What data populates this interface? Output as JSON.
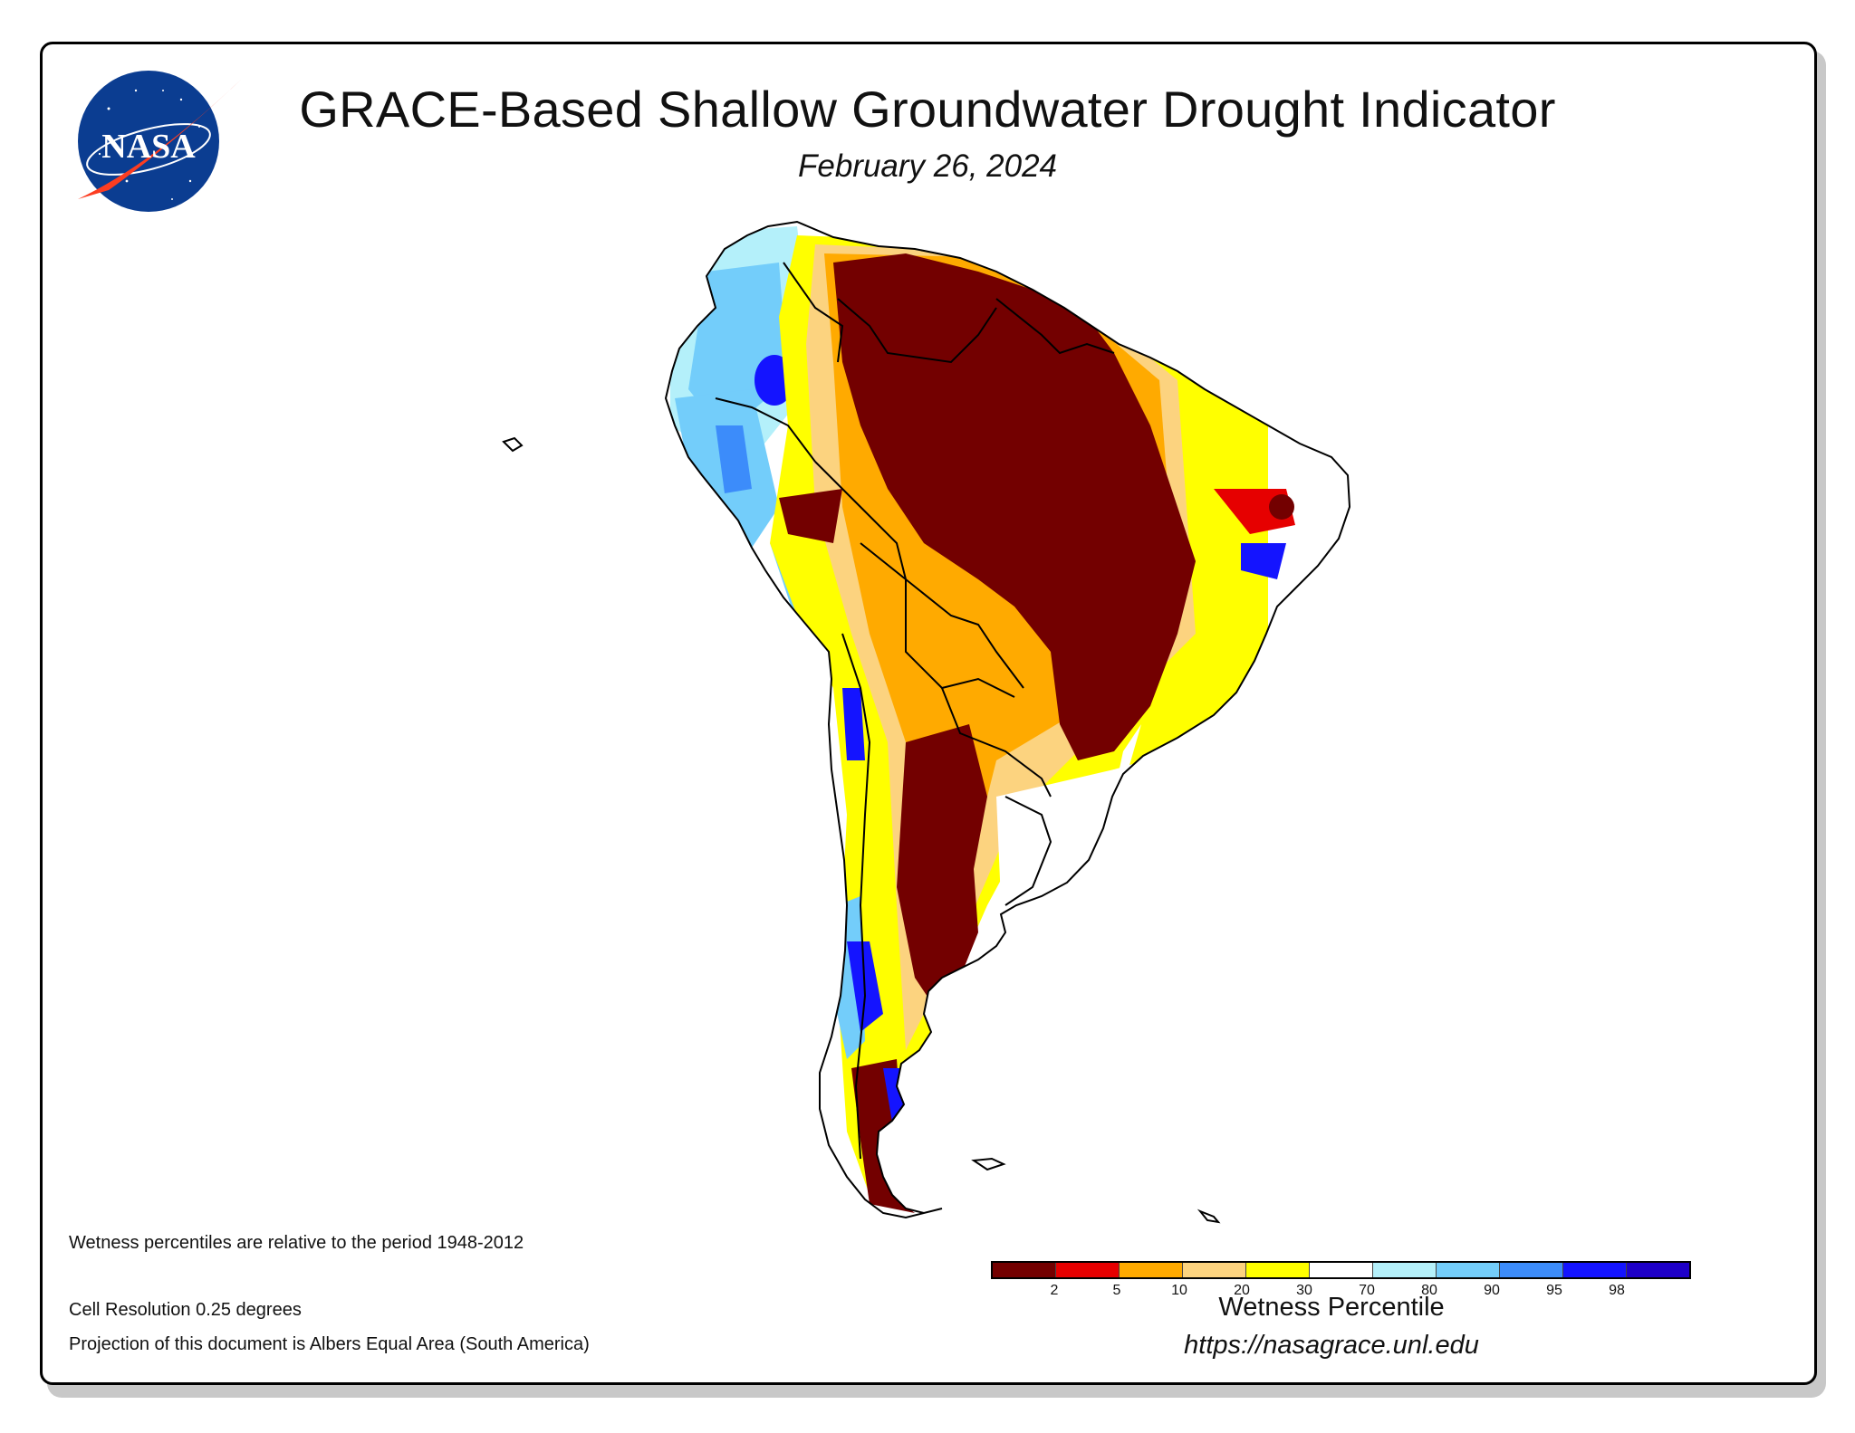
{
  "title": "GRACE-Based Shallow Groundwater Drought Indicator",
  "date": "February 26, 2024",
  "logo": {
    "text": "NASA"
  },
  "notes": {
    "period": "Wetness percentiles are relative to the period 1948-2012",
    "resolution": "Cell Resolution 0.25 degrees",
    "projection": "Projection of this document is Albers Equal Area (South America)"
  },
  "legend": {
    "title": "Wetness Percentile",
    "colors": [
      "#730000",
      "#e60000",
      "#ffaa00",
      "#fcd37f",
      "#ffff00",
      "#ffffff",
      "#b4f0fa",
      "#73cdfa",
      "#3c8cfa",
      "#1414ff",
      "#1e00c8"
    ],
    "ticks": [
      "2",
      "5",
      "10",
      "20",
      "30",
      "70",
      "80",
      "90",
      "95",
      "98"
    ]
  },
  "url": "https://nasagrace.unl.edu"
}
